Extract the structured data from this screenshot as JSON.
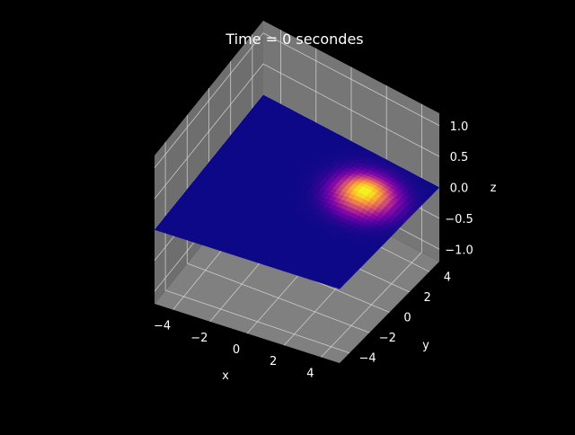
{
  "chart_data": {
    "type": "surface",
    "title": "Time = 0 secondes",
    "xlabel": "x",
    "ylabel": "y",
    "zlabel": "z",
    "xlim": [
      -5,
      5
    ],
    "ylim": [
      -5,
      5
    ],
    "zlim": [
      -1.2,
      1.2
    ],
    "x_ticks": [
      -4,
      -2,
      0,
      2,
      4
    ],
    "y_ticks": [
      -4,
      -2,
      0,
      2,
      4
    ],
    "z_ticks": [
      -1.0,
      -0.5,
      0.0,
      0.5,
      1.0
    ],
    "x_tick_labels": [
      "−4",
      "−2",
      "0",
      "2",
      "4"
    ],
    "y_tick_labels": [
      "−4",
      "−2",
      "0",
      "2",
      "4"
    ],
    "z_tick_labels": [
      "−1.0",
      "−0.5",
      "0.0",
      "0.5",
      "1.0"
    ],
    "surface": {
      "peak_center": [
        2.5,
        2.0
      ],
      "peak_value": 0.1,
      "base_value": 0.0,
      "width": 1.0,
      "colormap": "plasma"
    },
    "grid": true,
    "background": "#000000",
    "pane_color": "#808080"
  }
}
